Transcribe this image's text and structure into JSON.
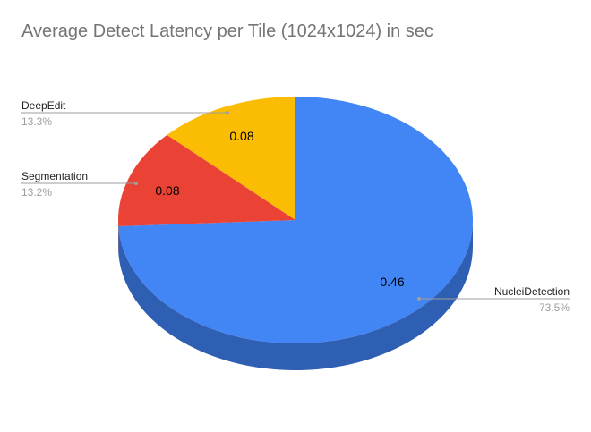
{
  "chart_data": {
    "type": "pie",
    "title": "Average Detect Latency per Tile (1024x1024) in sec",
    "slices": [
      {
        "label": "NucleiDetection",
        "value": 0.46,
        "percent": "73.5%",
        "value_label": "0.46",
        "color": "#4285f4",
        "side_color": "#2f5fb3"
      },
      {
        "label": "Segmentation",
        "value": 0.08,
        "percent": "13.2%",
        "value_label": "0.08",
        "color": "#ea4335",
        "side_color": "#a8302a"
      },
      {
        "label": "DeepEdit",
        "value": 0.08,
        "percent": "13.3%",
        "value_label": "0.08",
        "color": "#fbbc04",
        "side_color": "#b58a0a"
      }
    ],
    "style": "3d",
    "legend": "callout labels beside slices"
  }
}
